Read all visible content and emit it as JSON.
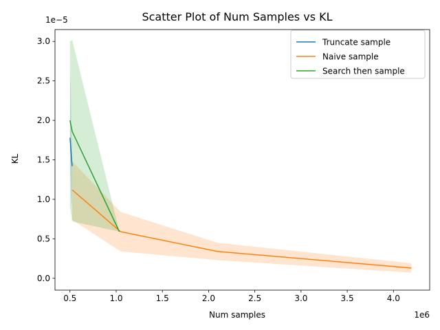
{
  "chart_data": {
    "type": "line",
    "title": "Scatter Plot of Num Samples vs KL",
    "xlabel": "Num samples",
    "ylabel": "KL",
    "x_offset_label": "1e6",
    "y_offset_label": "1e−5",
    "xlim": [
      0.3381,
      4.3919
    ],
    "ylim": [
      -0.15,
      3.15
    ],
    "x_ticks": [
      0.5,
      1.0,
      1.5,
      2.0,
      2.5,
      3.0,
      3.5,
      4.0
    ],
    "x_tick_labels": [
      "0.5",
      "1.0",
      "1.5",
      "2.0",
      "2.5",
      "3.0",
      "3.5",
      "4.0"
    ],
    "y_ticks": [
      0.0,
      0.5,
      1.0,
      1.5,
      2.0,
      2.5,
      3.0
    ],
    "y_tick_labels": [
      "0.0",
      "0.5",
      "1.0",
      "1.5",
      "2.0",
      "2.5",
      "3.0"
    ],
    "grid": false,
    "legend_position": "top-right",
    "series": [
      {
        "name": "Truncate sample",
        "color": "#1f77b4",
        "x": [
          0.5,
          0.5012,
          0.5024,
          0.5036,
          0.5048,
          0.506,
          0.5072,
          0.5084,
          0.5096,
          0.5108,
          0.512,
          0.5132,
          0.5144,
          0.5156,
          0.5168,
          0.518,
          0.5192,
          0.5204,
          0.5216,
          0.5228,
          0.524
        ],
        "y": [
          1.78,
          1.77,
          1.76,
          1.74,
          1.72,
          1.7,
          1.68,
          1.66,
          1.64,
          1.62,
          1.6,
          1.58,
          1.56,
          1.54,
          1.52,
          1.5,
          1.48,
          1.47,
          1.45,
          1.44,
          1.42
        ],
        "band_lower": [
          1.78,
          1.6,
          1.5,
          1.4,
          1.35,
          1.3,
          1.25,
          1.2,
          1.15,
          1.1,
          1.05,
          1.0,
          0.97,
          0.95,
          0.93,
          0.92,
          0.95,
          1.0,
          1.1,
          1.2,
          1.42
        ],
        "band_upper": [
          1.78,
          2.0,
          2.2,
          2.4,
          2.55,
          2.6,
          2.55,
          2.5,
          2.4,
          2.3,
          2.2,
          2.1,
          2.0,
          1.9,
          1.85,
          1.8,
          1.75,
          1.7,
          1.6,
          1.5,
          1.42
        ]
      },
      {
        "name": "Naive sample",
        "color": "#ff7f0e",
        "x": [
          0.524,
          1.048,
          2.097,
          4.194
        ],
        "y": [
          1.12,
          0.59,
          0.34,
          0.13
        ],
        "band_lower": [
          0.74,
          0.34,
          0.23,
          0.07
        ],
        "band_upper": [
          1.48,
          0.84,
          0.45,
          0.19
        ]
      },
      {
        "name": "Search then sample",
        "color": "#2ca02c",
        "x": [
          0.5,
          0.524,
          1.035
        ],
        "y": [
          2.0,
          1.86,
          0.59
        ],
        "band_lower": [
          0.91,
          0.72,
          0.59
        ],
        "band_upper": [
          3.0,
          3.02,
          0.59
        ]
      }
    ]
  }
}
